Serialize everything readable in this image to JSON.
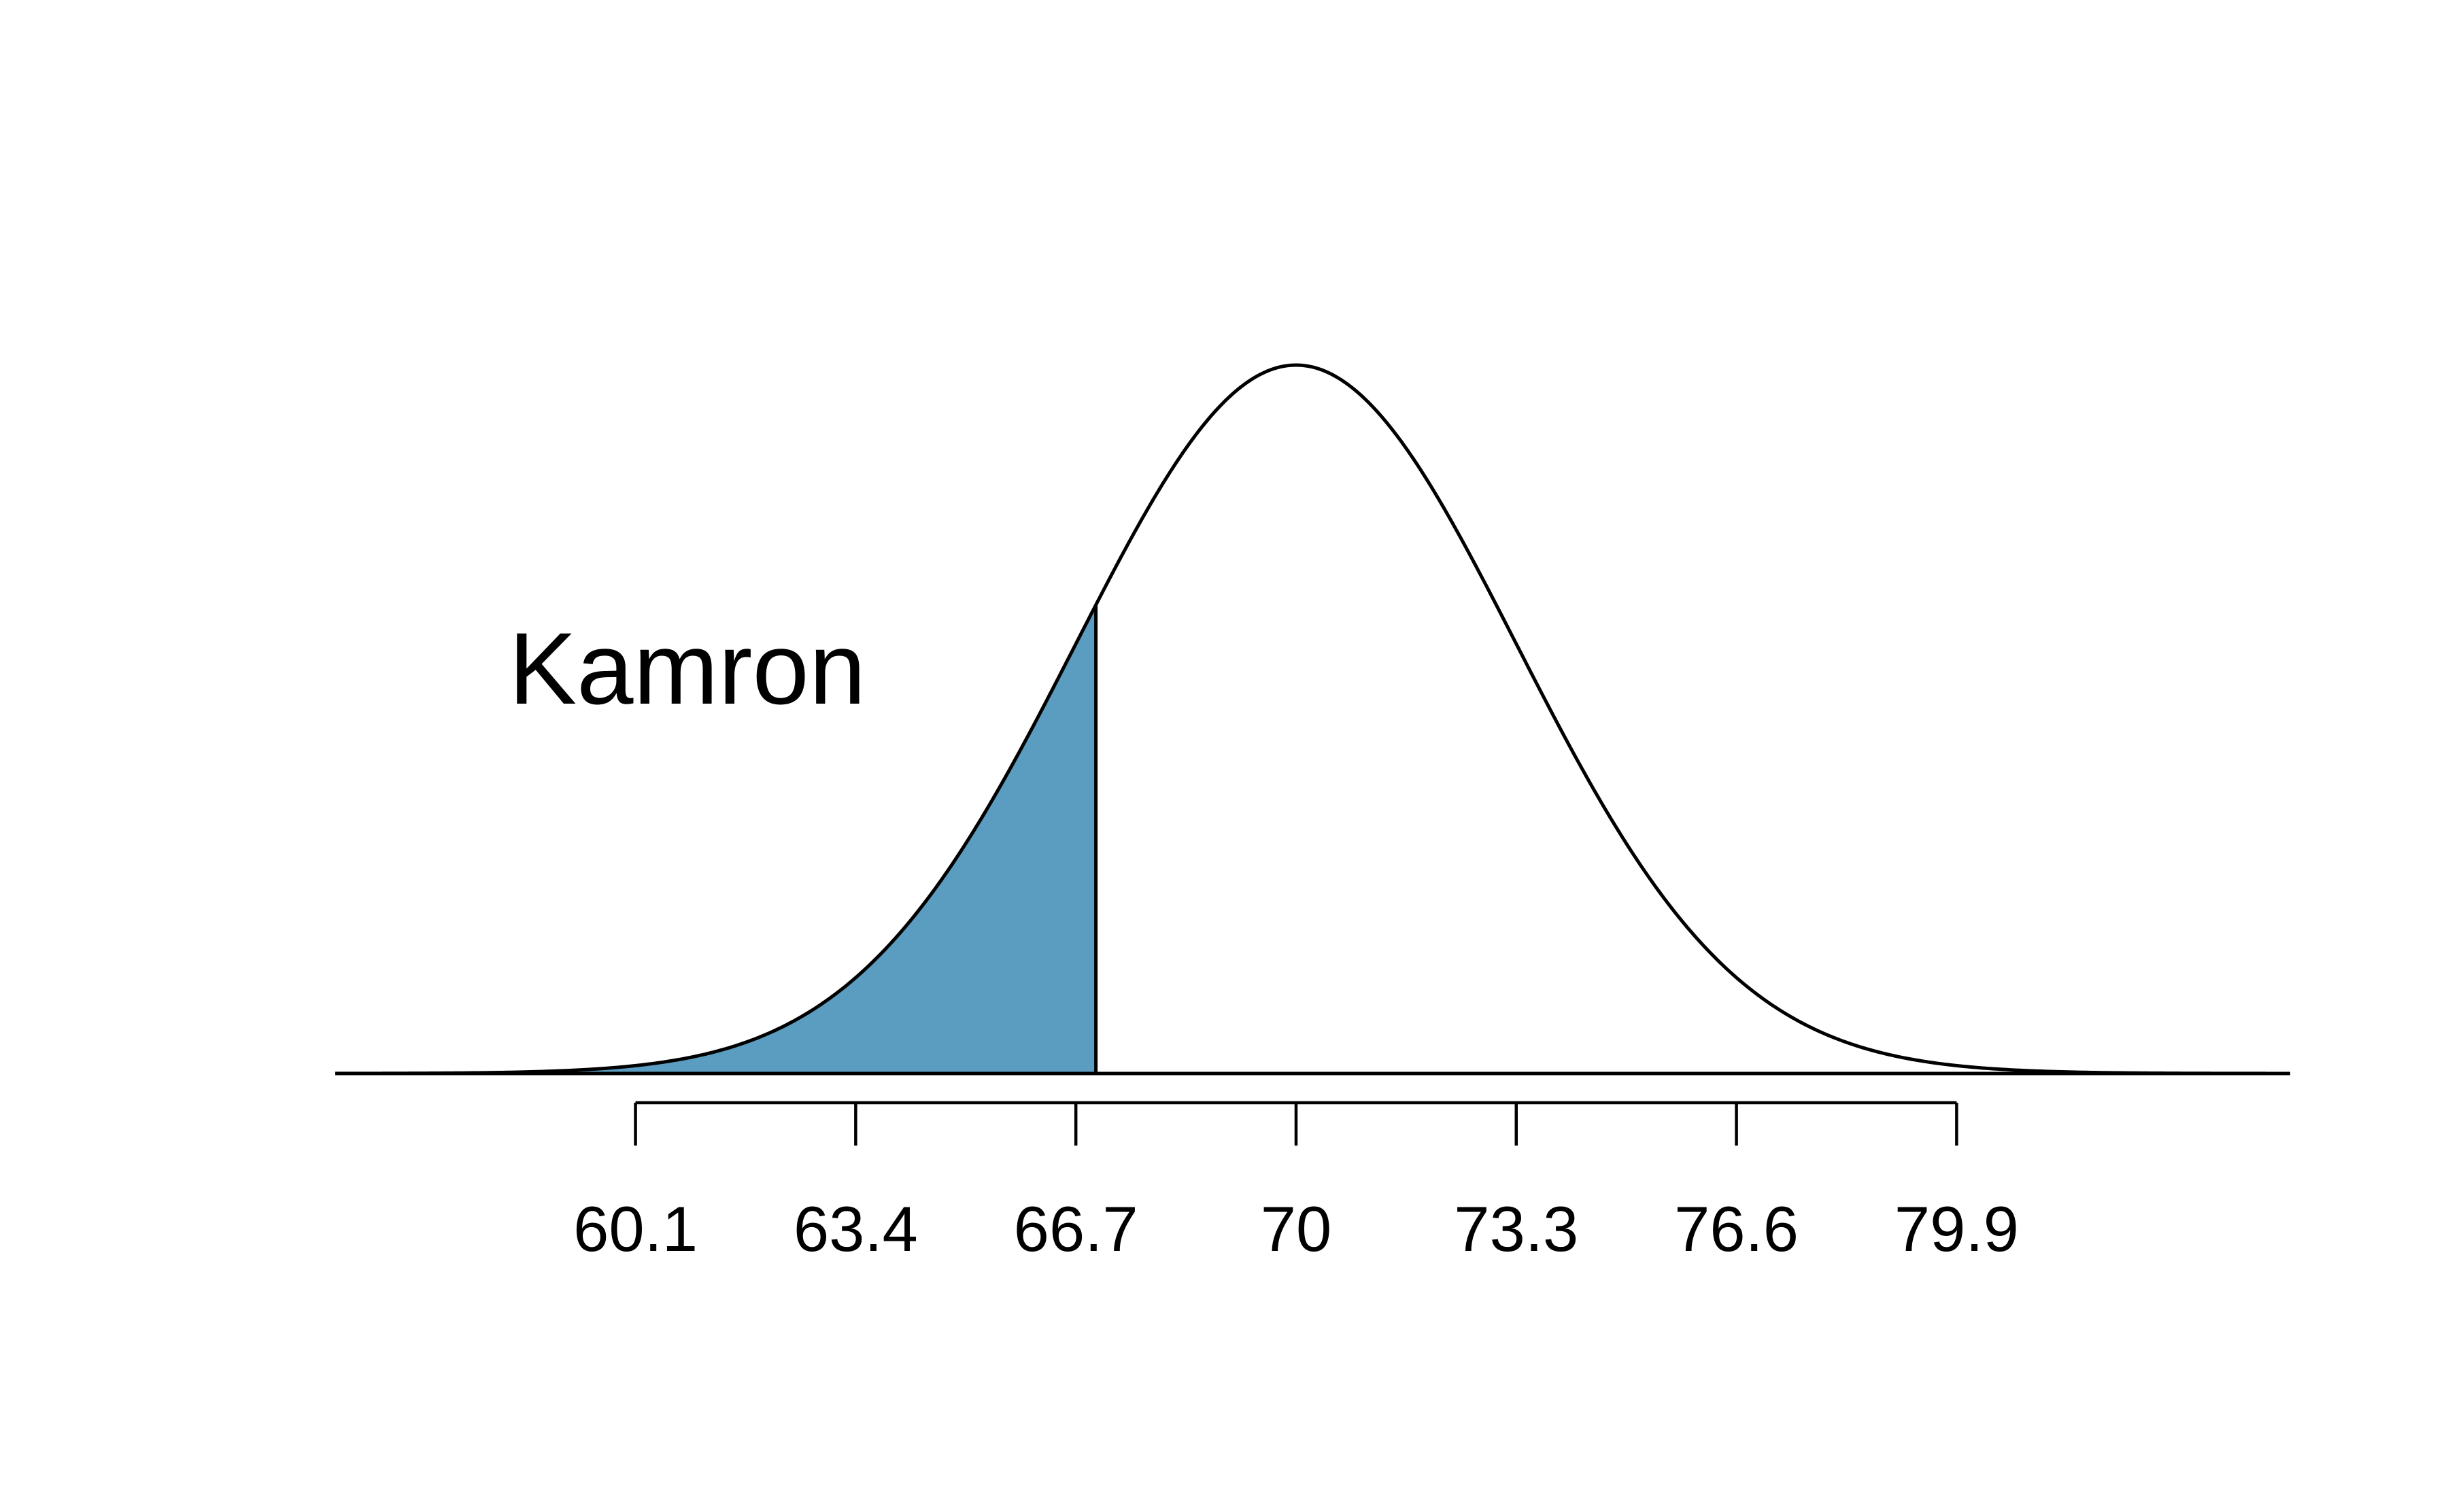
{
  "chart_data": {
    "type": "area",
    "distribution": "normal",
    "mean": 70,
    "sd": 3.3,
    "xlim": [
      55.6,
      84.9
    ],
    "ticks": [
      60.1,
      63.4,
      66.7,
      70,
      73.3,
      76.6,
      79.9
    ],
    "tick_labels": [
      "60.1",
      "63.4",
      "66.7",
      "70",
      "73.3",
      "76.6",
      "79.9"
    ],
    "shaded_region": {
      "from": 55.6,
      "to": 67.0,
      "side": "lower tail"
    },
    "annotations": [
      {
        "text": "Kamron"
      }
    ],
    "title": "",
    "xlabel": "",
    "ylabel": "",
    "grid": false,
    "colors": {
      "shade": "#5b9dc0",
      "line": "#000000"
    }
  }
}
